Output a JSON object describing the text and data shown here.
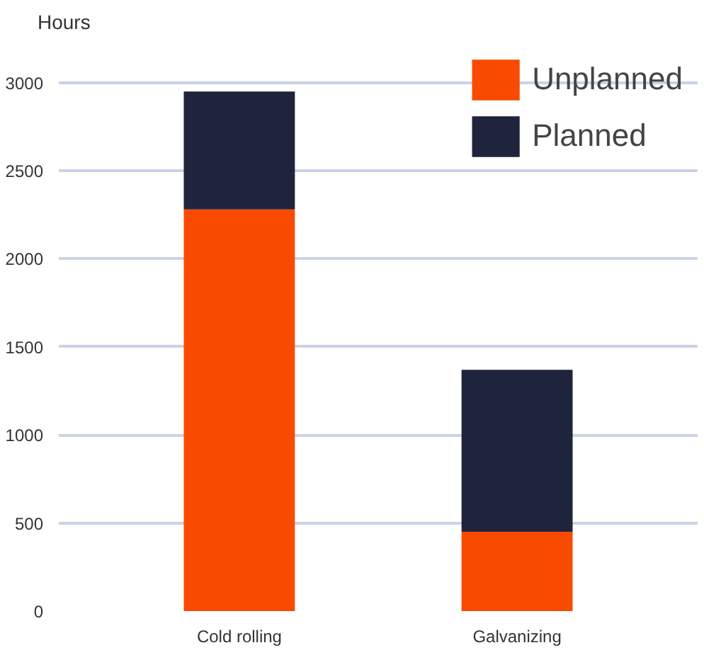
{
  "chart_data": {
    "type": "bar",
    "ylabel": "Hours",
    "categories": [
      "Cold rolling",
      "Galvanizing"
    ],
    "stacked": true,
    "series": [
      {
        "name": "Unplanned",
        "color": "#f84a00",
        "values": [
          2280,
          450
        ]
      },
      {
        "name": "Planned",
        "color": "#1f243d",
        "values": [
          670,
          920
        ]
      }
    ],
    "ylim": [
      0,
      3000
    ],
    "yticks": [
      0,
      500,
      1000,
      1500,
      2000,
      2500,
      3000
    ],
    "grid": "y",
    "legend": "top right"
  }
}
